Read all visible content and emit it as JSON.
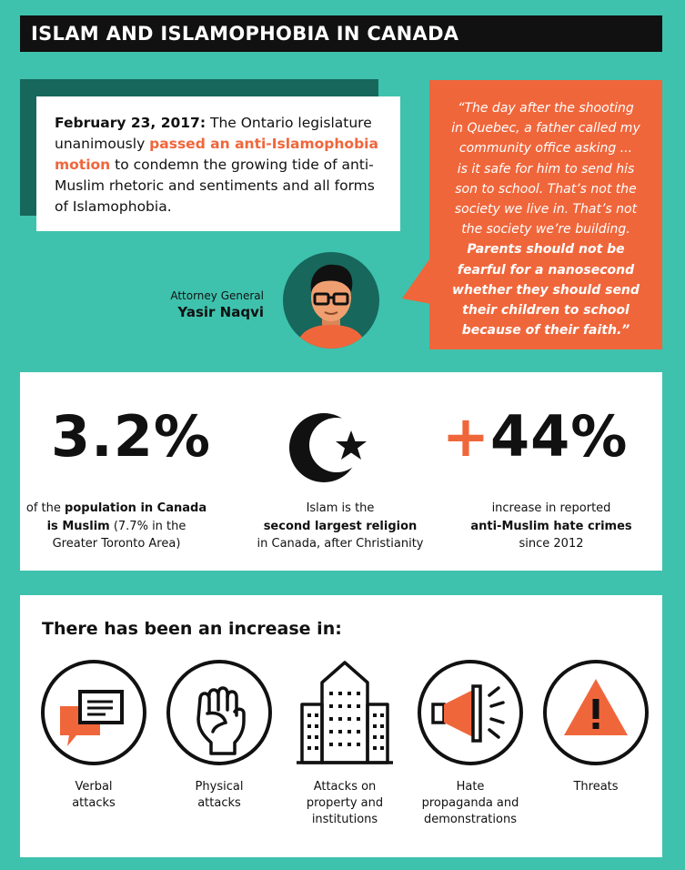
{
  "header": {
    "title": "ISLAM AND ISLAMOPHOBIA IN CANADA"
  },
  "fact": {
    "date": "February 23, 2017:",
    "text_before": " The Ontario legislature unanimously ",
    "highlight": "passed an anti-Islamophobia motion",
    "text_after": " to condemn the growing tide of anti-Muslim rhetoric and sentiments and all forms of Islamophobia."
  },
  "quote": {
    "lines": [
      "“The day after the shooting",
      "in Quebec, a father called my",
      "community office asking ...",
      "is it safe for him to send his",
      "son to school. That’s not the",
      "society we live in. That’s not",
      "the society we’re building."
    ],
    "strong_lines": [
      "Parents should not be",
      "fearful for a nanosecond",
      "whether they should send",
      "their children to school",
      "because of their faith.”"
    ]
  },
  "attribution": {
    "role": "Attorney General",
    "name": "Yasir Naqvi"
  },
  "stats": [
    {
      "number": "3.2%",
      "caption_pre": "of the ",
      "caption_bold": "population in Canada is Muslim",
      "caption_post": " (7.7% in the Greater Toronto Area)"
    },
    {
      "caption_pre": "Islam is the",
      "caption_bold": "second largest religion",
      "caption_post": "in Canada, after Christianity"
    },
    {
      "plus": "+",
      "number": "44%",
      "caption_pre": "increase in reported",
      "caption_bold": "anti-Muslim hate crimes",
      "caption_post": "since 2012"
    }
  ],
  "increase": {
    "heading": "There has been an increase in:",
    "items": [
      {
        "label_1": "Verbal",
        "label_2": "attacks",
        "label_3": "",
        "icon": "speech-bubble-icon"
      },
      {
        "label_1": "Physical",
        "label_2": "attacks",
        "label_3": "",
        "icon": "fist-icon"
      },
      {
        "label_1": "Attacks on",
        "label_2": "property and",
        "label_3": "institutions",
        "icon": "building-icon"
      },
      {
        "label_1": "Hate",
        "label_2": "propaganda and",
        "label_3": "demonstrations",
        "icon": "megaphone-icon"
      },
      {
        "label_1": "Threats",
        "label_2": "",
        "label_3": "",
        "icon": "warning-icon"
      }
    ]
  },
  "colors": {
    "teal": "#3ec2ad",
    "dark_teal": "#17675c",
    "orange": "#f0663b",
    "black": "#111111"
  }
}
